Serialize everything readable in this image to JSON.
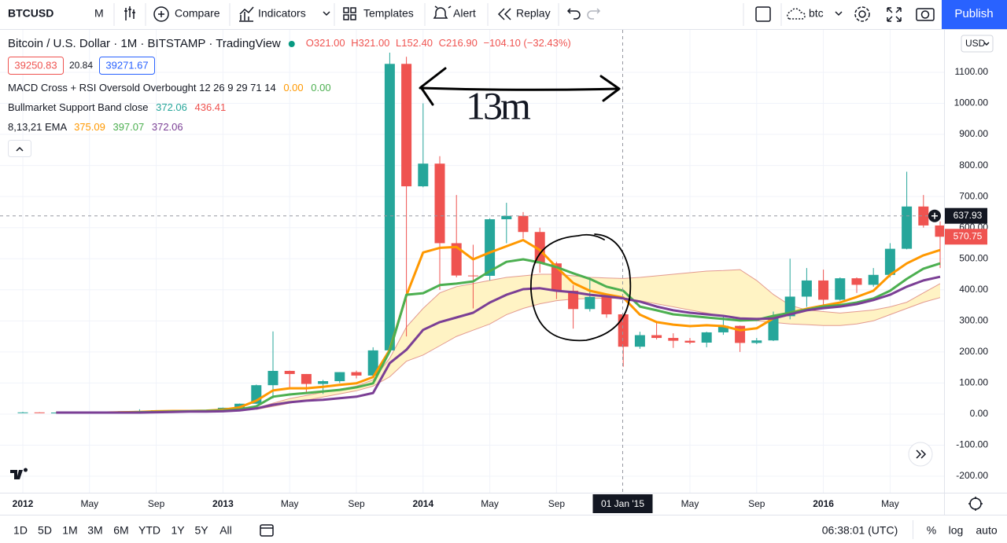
{
  "toolbar": {
    "symbol": "BTCUSD",
    "interval": "M",
    "buttons": [
      "Compare",
      "Indicators",
      "Templates",
      "Alert",
      "Replay"
    ],
    "search": "btc",
    "publish": "Publish"
  },
  "legend": {
    "quote_boxes": [
      "39250.83",
      "20.84",
      "39271.67"
    ],
    "indicators": [
      {
        "name": "MACD Cross + RSI Oversold Overbought 12 26 9 29 71 14",
        "values": [
          "0.00",
          "0.00"
        ]
      },
      {
        "name": "Bullmarket Support Band close"
      },
      {
        "name": "8,13,21 EMA"
      }
    ]
  },
  "annotation": "13m",
  "chart_data": {
    "type": "candlestick",
    "title": "Bitcoin / U.S. Dollar · 1M · BITSTAMP · TradingView",
    "ohlc_header": [
      "O321.00",
      "H321.00",
      "L152.40",
      "C216.90",
      "−104.10 (−32.43%)"
    ],
    "currency": "USD",
    "categories": [
      "2012",
      null,
      null,
      null,
      "May",
      null,
      null,
      null,
      "Sep",
      null,
      null,
      null,
      "2013",
      null,
      null,
      null,
      "May",
      null,
      null,
      null,
      "Sep",
      null,
      null,
      null,
      "2014",
      null,
      null,
      null,
      "May",
      null,
      null,
      null,
      "Sep",
      null,
      null,
      null,
      null,
      null,
      null,
      null,
      "May",
      null,
      null,
      null,
      "Sep",
      null,
      null,
      null,
      "2016",
      null,
      null,
      null,
      "May",
      null,
      null,
      null
    ],
    "open": [
      5.3,
      5.5,
      4.9,
      4.9,
      5.0,
      5.1,
      6.7,
      9.3,
      10.2,
      12.4,
      11.2,
      12.6,
      13.5,
      20.4,
      33.4,
      93,
      139,
      129,
      97,
      106,
      135,
      124,
      205,
      1127,
      733,
      806,
      550,
      446,
      445,
      627,
      638,
      586,
      485,
      397,
      338,
      377,
      321,
      216.9,
      254,
      245,
      236,
      230,
      263,
      284,
      229,
      237,
      315,
      378,
      430,
      368,
      437,
      416,
      448,
      532,
      668,
      607
    ],
    "high": [
      7.2,
      6.2,
      5.4,
      5.2,
      5.2,
      6.7,
      9.3,
      15.4,
      12.8,
      12.5,
      12.9,
      14,
      21,
      34,
      95,
      266,
      140,
      129,
      110,
      135,
      140,
      215,
      1163,
      1150,
      1000,
      830,
      705,
      545,
      630,
      680,
      650,
      600,
      490,
      415,
      440,
      385,
      321,
      265,
      300,
      260,
      245,
      265,
      315,
      285,
      245,
      330,
      500,
      470,
      465,
      440,
      440,
      470,
      550,
      780,
      705,
      620
    ],
    "low": [
      5.0,
      4.2,
      4.4,
      4.7,
      4.9,
      5.1,
      6.5,
      7.1,
      10.1,
      10.6,
      10.2,
      12.5,
      13,
      19.5,
      33,
      50,
      80,
      65,
      65,
      100,
      115,
      120,
      200,
      250,
      730,
      400,
      440,
      340,
      430,
      550,
      565,
      455,
      370,
      275,
      330,
      310,
      152.4,
      210,
      240,
      213,
      225,
      215,
      255,
      200,
      225,
      235,
      305,
      345,
      350,
      365,
      390,
      410,
      440,
      530,
      600,
      470
    ],
    "close": [
      5.5,
      4.9,
      4.9,
      5.0,
      5.1,
      6.7,
      9.3,
      10.2,
      12.4,
      11.2,
      12.6,
      13.5,
      20.4,
      33.4,
      93,
      139,
      129,
      97,
      106,
      135,
      124,
      205,
      1127,
      733,
      806,
      550,
      446,
      445,
      627,
      638,
      586,
      485,
      397,
      338,
      377,
      321,
      216.9,
      254,
      245,
      236,
      230,
      263,
      284,
      229,
      237,
      315,
      378,
      430,
      368,
      437,
      416,
      448,
      532,
      668,
      607,
      570.75
    ],
    "up_color": "#26a69a",
    "down_color": "#ef5350",
    "lines": [
      {
        "color": "#ff9800",
        "values": [
          null,
          null,
          5,
          5,
          5,
          5,
          6,
          7,
          9,
          10,
          10,
          11,
          14,
          22,
          43,
          76,
          83,
          83,
          88,
          94,
          99,
          119,
          207,
          382,
          520,
          535,
          538,
          498,
          520,
          540,
          560,
          528,
          473,
          422,
          397,
          385,
          375.09,
          320,
          296,
          288,
          283,
          286,
          283,
          270,
          276,
          308,
          326,
          339,
          349,
          359,
          377,
          397,
          448,
          485,
          511,
          528
        ]
      },
      {
        "color": "#4caf50",
        "values": [
          null,
          null,
          5,
          5,
          5,
          5,
          5,
          6,
          7,
          8,
          9,
          10,
          11,
          15,
          25,
          56,
          63,
          68,
          73,
          78,
          86,
          99,
          202,
          384,
          389,
          415,
          420,
          427,
          460,
          490,
          498,
          488,
          473,
          453,
          435,
          410,
          397.07,
          346,
          334,
          321,
          316,
          311,
          306,
          301,
          303,
          316,
          326,
          336,
          346,
          351,
          359,
          372,
          397,
          435,
          468,
          485
        ]
      },
      {
        "color": "#7b3f95",
        "values": [
          null,
          null,
          5,
          5,
          5,
          5,
          5,
          5,
          6,
          7,
          8,
          8,
          9,
          12,
          18,
          30,
          38,
          43,
          46,
          51,
          56,
          68,
          164,
          207,
          271,
          296,
          311,
          326,
          359,
          384,
          402,
          405,
          397,
          392,
          384,
          379,
          372.06,
          362,
          346,
          334,
          326,
          321,
          316,
          308,
          306,
          308,
          321,
          334,
          341,
          346,
          354,
          367,
          384,
          410,
          430,
          442
        ]
      }
    ],
    "band": {
      "color": "#fff3c4",
      "line_color": "#e39a8f",
      "lower": [
        null,
        null,
        null,
        null,
        null,
        null,
        null,
        null,
        null,
        null,
        null,
        null,
        null,
        null,
        15,
        25,
        35,
        45,
        55,
        65,
        75,
        90,
        120,
        170,
        190,
        220,
        250,
        270,
        290,
        320,
        340,
        355,
        365,
        370,
        372,
        373,
        372.06,
        365,
        355,
        345,
        335,
        325,
        315,
        305,
        300,
        295,
        290,
        288,
        285,
        285,
        290,
        300,
        320,
        340,
        360,
        375
      ],
      "upper": [
        null,
        null,
        null,
        null,
        null,
        null,
        null,
        null,
        null,
        null,
        null,
        null,
        null,
        null,
        20,
        35,
        50,
        60,
        70,
        80,
        90,
        110,
        180,
        280,
        340,
        390,
        410,
        420,
        430,
        440,
        445,
        450,
        450,
        445,
        440,
        438,
        436.41,
        440,
        445,
        450,
        455,
        460,
        462,
        465,
        430,
        385,
        350,
        335,
        330,
        325,
        330,
        335,
        345,
        360,
        390,
        420
      ]
    },
    "ylim": [
      -253,
      1239
    ],
    "yticks": [
      {
        "value": -200,
        "label": "-200.00"
      },
      {
        "value": -100,
        "label": "-100.00"
      },
      {
        "value": 0,
        "label": "0.00"
      },
      {
        "value": 100,
        "label": "100.00"
      },
      {
        "value": 200,
        "label": "200.00"
      },
      {
        "value": 300,
        "label": "300.00"
      },
      {
        "value": 400,
        "label": "400.00"
      },
      {
        "value": 500,
        "label": "500.00"
      },
      {
        "value": 600,
        "label": "600.00"
      },
      {
        "value": 700,
        "label": "700.00"
      },
      {
        "value": 800,
        "label": "800.00"
      },
      {
        "value": 900,
        "label": "900.00"
      },
      {
        "value": 1000,
        "label": "1000.00"
      },
      {
        "value": 1100,
        "label": "1100.00"
      }
    ],
    "crosshair_price": 637.93,
    "crosshair_time": "01 Jan '15",
    "grid": true
  },
  "bottom_bar": {
    "ranges": [
      "1D",
      "5D",
      "1M",
      "3M",
      "6M",
      "YTD",
      "1Y",
      "5Y",
      "All"
    ],
    "time": "06:38:01 (UTC)",
    "options": [
      "%",
      "log",
      "auto"
    ]
  }
}
